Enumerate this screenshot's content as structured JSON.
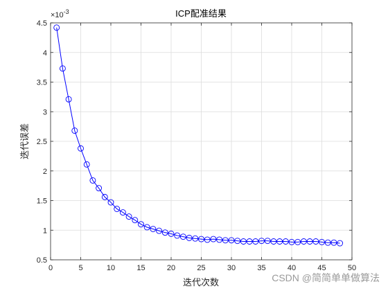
{
  "chart_data": {
    "type": "line",
    "title": "ICP配准结果",
    "xlabel": "迭代次数",
    "ylabel": "迭代误差",
    "y_exponent_label": "×10",
    "y_exponent_power": "-3",
    "xlim": [
      0,
      50
    ],
    "ylim": [
      0.5,
      4.5
    ],
    "grid": true,
    "x_ticks": [
      "0",
      "5",
      "10",
      "15",
      "20",
      "25",
      "30",
      "35",
      "40",
      "45",
      "50"
    ],
    "y_ticks": [
      "0.5",
      "1",
      "1.5",
      "2",
      "2.5",
      "3",
      "3.5",
      "4",
      "4.5"
    ],
    "series": [
      {
        "line_color": "#0000ff",
        "marker": "circle",
        "x": [
          1,
          2,
          3,
          4,
          5,
          6,
          7,
          8,
          9,
          10,
          11,
          12,
          13,
          14,
          15,
          16,
          17,
          18,
          19,
          20,
          21,
          22,
          23,
          24,
          25,
          26,
          27,
          28,
          29,
          30,
          31,
          32,
          33,
          34,
          35,
          36,
          37,
          38,
          39,
          40,
          41,
          42,
          43,
          44,
          45,
          46,
          47,
          48
        ],
        "values": [
          4.42,
          3.73,
          3.21,
          2.68,
          2.38,
          2.11,
          1.84,
          1.71,
          1.56,
          1.47,
          1.36,
          1.3,
          1.23,
          1.17,
          1.1,
          1.05,
          1.02,
          0.99,
          0.96,
          0.94,
          0.91,
          0.89,
          0.87,
          0.86,
          0.85,
          0.84,
          0.85,
          0.84,
          0.83,
          0.83,
          0.82,
          0.81,
          0.81,
          0.81,
          0.82,
          0.82,
          0.81,
          0.81,
          0.81,
          0.8,
          0.8,
          0.81,
          0.81,
          0.81,
          0.8,
          0.79,
          0.79,
          0.78
        ]
      }
    ]
  },
  "watermark": "CSDN @简简单单做算法"
}
